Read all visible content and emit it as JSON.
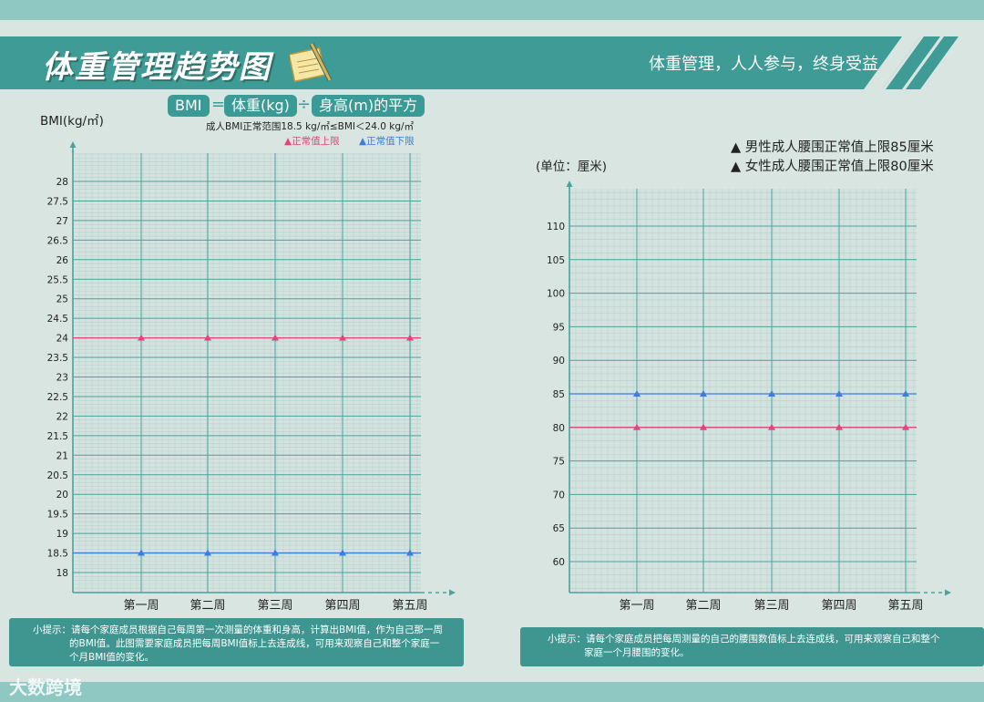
{
  "header": {
    "title": "体重管理趋势图",
    "slogan": "体重管理，人人参与，终身受益",
    "notepad_icon": "notepad-pencil-icon"
  },
  "formula": {
    "bmi": "BMI",
    "equals": "=",
    "weight": "体重(kg)",
    "divide": "÷",
    "height": "身高(m)的平方",
    "normal_range": "成人BMI正常范围18.5 kg/㎡≤BMI＜24.0 kg/㎡"
  },
  "colors": {
    "upper": "#e0457b",
    "lower": "#3b7dd8",
    "teal": "#3a9a95"
  },
  "charts": [
    {
      "ylabel": "BMI(kg/㎡)",
      "legend": [
        "▲正常值上限",
        "▲正常值下限"
      ],
      "tip": {
        "line1": "小提示：请每个家庭成员根据自己每周第一次测量的体重和身高，计算出BMI值，作为自己那一周",
        "line2": "的BMI值。此图需要家庭成员把每周BMI值标上去连成线，可用来观察自己和整个家庭一",
        "line3": "个月BMI值的变化。"
      }
    },
    {
      "ylabel": "(单位：厘米)",
      "legend": [
        "▲ 男性成人腰围正常值上限85厘米",
        "▲ 女性成人腰围正常值上限80厘米"
      ],
      "tip": {
        "line1": "小提示：请每个家庭成员把每周测量的自己的腰围数值标上去连成线，可用来观察自己和整个",
        "line2": "家庭一个月腰围的变化。"
      }
    }
  ],
  "chart_data": [
    {
      "type": "line",
      "categories": [
        "第一周",
        "第二周",
        "第三周",
        "第四周",
        "第五周"
      ],
      "ylabel": "BMI(kg/㎡)",
      "yticks": [
        "18",
        "18.5",
        "19",
        "19.5",
        "20",
        "20.5",
        "21",
        "21.5",
        "22",
        "22.5",
        "23",
        "23.5",
        "24",
        "24.5",
        "25",
        "25.5",
        "26",
        "26.5",
        "27",
        "27.5",
        "28"
      ],
      "ylim": [
        17.5,
        28.5
      ],
      "grid": true,
      "series": [
        {
          "name": "正常值上限",
          "values": [
            24,
            24,
            24,
            24,
            24
          ],
          "color": "#e0457b"
        },
        {
          "name": "正常值下限",
          "values": [
            18.5,
            18.5,
            18.5,
            18.5,
            18.5
          ],
          "color": "#3b7dd8"
        }
      ]
    },
    {
      "type": "line",
      "categories": [
        "第一周",
        "第二周",
        "第三周",
        "第四周",
        "第五周"
      ],
      "ylabel": "(单位：厘米)",
      "yticks": [
        "60",
        "65",
        "70",
        "75",
        "80",
        "85",
        "90",
        "95",
        "100",
        "105",
        "110"
      ],
      "ylim": [
        56,
        113
      ],
      "grid": true,
      "series": [
        {
          "name": "男性成人腰围正常值上限85厘米",
          "values": [
            85,
            85,
            85,
            85,
            85
          ],
          "color": "#3b7dd8"
        },
        {
          "name": "女性成人腰围正常值上限80厘米",
          "values": [
            80,
            80,
            80,
            80,
            80
          ],
          "color": "#e0457b"
        }
      ]
    }
  ],
  "watermark": "大数跨境"
}
